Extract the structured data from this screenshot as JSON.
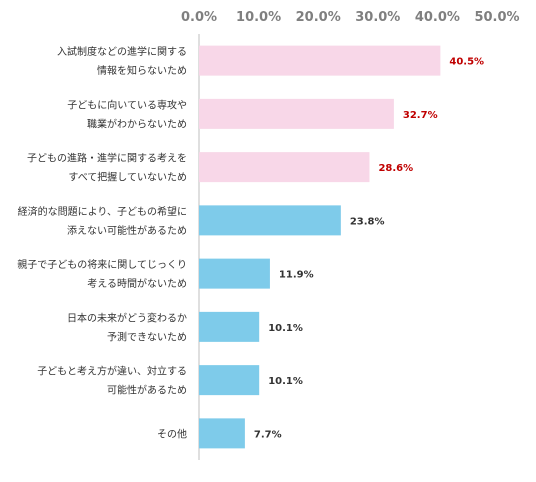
{
  "chart_data": {
    "type": "bar",
    "orientation": "horizontal",
    "xlim": [
      0,
      50
    ],
    "tick_labels": [
      "0.0%",
      "10.0%",
      "20.0%",
      "30.0%",
      "40.0%",
      "50.0%"
    ],
    "categories": [
      [
        "入試制度などの進学に関する",
        "情報を知らないため"
      ],
      [
        "子どもに向いている専攻や",
        "職業がわからないため"
      ],
      [
        "子どもの進路・進学に関する考えを",
        "すべて把握していないため"
      ],
      [
        "経済的な問題により、子どもの希望に",
        "添えない可能性があるため"
      ],
      [
        "親子で子どもの将来に関してじっくり",
        "考える時間がないため"
      ],
      [
        "日本の未来がどう変わるか",
        "予測できないため"
      ],
      [
        "子どもと考え方が違い、対立する",
        "可能性があるため"
      ],
      [
        "その他"
      ]
    ],
    "values": [
      40.5,
      32.7,
      28.6,
      23.8,
      11.9,
      10.1,
      10.1,
      7.7
    ],
    "value_labels": [
      "40.5%",
      "32.7%",
      "28.6%",
      "23.8%",
      "11.9%",
      "10.1%",
      "10.1%",
      "7.7%"
    ],
    "highlight_count": 3,
    "colors": {
      "highlight_bar": "#f8d7e8",
      "normal_bar": "#7ecbea",
      "highlight_label": "#c00000",
      "normal_label": "#333333",
      "tick": "#7f7f7f",
      "axis": "#bfbfbf"
    },
    "grid": false
  }
}
